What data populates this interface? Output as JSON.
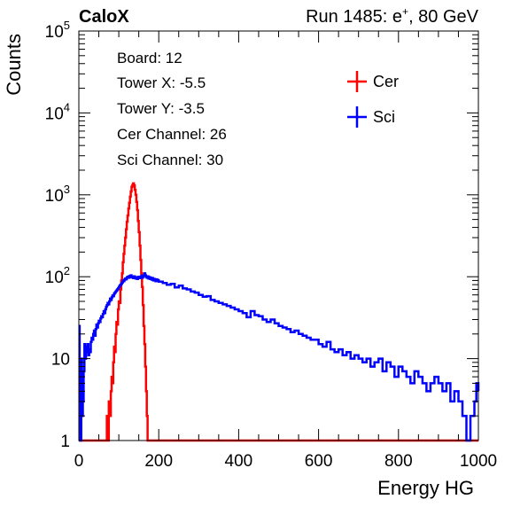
{
  "header": {
    "brand": "CaloX",
    "run_info_prefix": "Run 1485: e",
    "run_info_sup": "+",
    "run_info_suffix": ", 80 GeV"
  },
  "info_box": {
    "lines": [
      "Board: 12",
      "Tower X: -5.5",
      "Tower Y: -3.5",
      "Cer Channel: 26",
      "Sci Channel: 30"
    ]
  },
  "colors": {
    "cer": "#ff0000",
    "sci": "#0000ff",
    "axis": "#000000"
  },
  "chart_data": {
    "type": "histogram",
    "xlabel": "Energy HG",
    "ylabel": "Counts",
    "xlim": [
      0,
      1000
    ],
    "ylim": [
      1,
      100000
    ],
    "ylog": true,
    "x_ticks": [
      "0",
      "200",
      "400",
      "600",
      "800",
      "1000"
    ],
    "y_tick_labels": [
      {
        "value": 1,
        "base": "1",
        "exp": ""
      },
      {
        "value": 10,
        "base": "10",
        "exp": ""
      },
      {
        "value": 100,
        "base": "10",
        "exp": "2"
      },
      {
        "value": 1000,
        "base": "10",
        "exp": "3"
      },
      {
        "value": 10000,
        "base": "10",
        "exp": "4"
      },
      {
        "value": 100000,
        "base": "10",
        "exp": "5"
      }
    ],
    "legend_position": "top-right",
    "series": [
      {
        "name": "Cer",
        "color": "#ff0000",
        "points": [
          [
            0,
            0
          ],
          [
            50,
            0
          ],
          [
            55,
            1
          ],
          [
            57,
            0
          ],
          [
            60,
            1
          ],
          [
            62,
            0
          ],
          [
            66,
            1
          ],
          [
            70,
            2
          ],
          [
            72,
            1
          ],
          [
            75,
            3
          ],
          [
            78,
            2
          ],
          [
            80,
            4
          ],
          [
            82,
            6
          ],
          [
            84,
            5
          ],
          [
            86,
            9
          ],
          [
            88,
            14
          ],
          [
            90,
            12
          ],
          [
            92,
            20
          ],
          [
            94,
            28
          ],
          [
            96,
            26
          ],
          [
            98,
            40
          ],
          [
            100,
            50
          ],
          [
            102,
            48
          ],
          [
            104,
            70
          ],
          [
            106,
            90
          ],
          [
            108,
            110
          ],
          [
            110,
            150
          ],
          [
            112,
            190
          ],
          [
            114,
            240
          ],
          [
            116,
            300
          ],
          [
            118,
            380
          ],
          [
            120,
            470
          ],
          [
            122,
            560
          ],
          [
            124,
            680
          ],
          [
            126,
            800
          ],
          [
            128,
            950
          ],
          [
            130,
            1100
          ],
          [
            132,
            1250
          ],
          [
            134,
            1320
          ],
          [
            136,
            1380
          ],
          [
            138,
            1300
          ],
          [
            140,
            1150
          ],
          [
            142,
            1000
          ],
          [
            144,
            820
          ],
          [
            146,
            650
          ],
          [
            148,
            480
          ],
          [
            150,
            350
          ],
          [
            152,
            240
          ],
          [
            154,
            160
          ],
          [
            156,
            110
          ],
          [
            158,
            75
          ],
          [
            160,
            45
          ],
          [
            162,
            25
          ],
          [
            164,
            15
          ],
          [
            166,
            8
          ],
          [
            168,
            4
          ],
          [
            170,
            2
          ],
          [
            172,
            1
          ],
          [
            174,
            0
          ],
          [
            1000,
            0
          ]
        ]
      },
      {
        "name": "Sci",
        "color": "#0000ff",
        "points": [
          [
            0,
            25
          ],
          [
            2,
            3
          ],
          [
            4,
            1
          ],
          [
            6,
            10
          ],
          [
            8,
            2
          ],
          [
            10,
            3
          ],
          [
            12,
            7
          ],
          [
            14,
            15
          ],
          [
            16,
            10
          ],
          [
            18,
            14
          ],
          [
            20,
            12
          ],
          [
            22,
            15
          ],
          [
            24,
            11
          ],
          [
            26,
            13
          ],
          [
            28,
            12
          ],
          [
            30,
            16
          ],
          [
            32,
            18
          ],
          [
            34,
            17
          ],
          [
            36,
            20
          ],
          [
            38,
            22
          ],
          [
            40,
            19
          ],
          [
            42,
            23
          ],
          [
            44,
            26
          ],
          [
            46,
            24
          ],
          [
            48,
            27
          ],
          [
            50,
            29
          ],
          [
            52,
            28
          ],
          [
            54,
            31
          ],
          [
            56,
            33
          ],
          [
            58,
            32
          ],
          [
            60,
            35
          ],
          [
            62,
            38
          ],
          [
            64,
            36
          ],
          [
            66,
            40
          ],
          [
            68,
            43
          ],
          [
            70,
            45
          ],
          [
            72,
            48
          ],
          [
            74,
            46
          ],
          [
            76,
            50
          ],
          [
            78,
            54
          ],
          [
            80,
            52
          ],
          [
            82,
            56
          ],
          [
            84,
            59
          ],
          [
            86,
            58
          ],
          [
            88,
            62
          ],
          [
            90,
            64
          ],
          [
            92,
            66
          ],
          [
            94,
            68
          ],
          [
            96,
            70
          ],
          [
            98,
            72
          ],
          [
            100,
            75
          ],
          [
            102,
            78
          ],
          [
            104,
            80
          ],
          [
            106,
            82
          ],
          [
            108,
            85
          ],
          [
            110,
            90
          ],
          [
            112,
            88
          ],
          [
            114,
            92
          ],
          [
            116,
            95
          ],
          [
            118,
            93
          ],
          [
            120,
            98
          ],
          [
            122,
            100
          ],
          [
            124,
            97
          ],
          [
            126,
            102
          ],
          [
            128,
            99
          ],
          [
            130,
            104
          ],
          [
            132,
            98
          ],
          [
            134,
            100
          ],
          [
            136,
            96
          ],
          [
            138,
            101
          ],
          [
            140,
            97
          ],
          [
            142,
            95
          ],
          [
            144,
            99
          ],
          [
            146,
            94
          ],
          [
            148,
            98
          ],
          [
            150,
            100
          ],
          [
            152,
            96
          ],
          [
            154,
            100
          ],
          [
            156,
            103
          ],
          [
            158,
            97
          ],
          [
            160,
            100
          ],
          [
            162,
            104
          ],
          [
            164,
            110
          ],
          [
            166,
            104
          ],
          [
            168,
            100
          ],
          [
            170,
            97
          ],
          [
            172,
            101
          ],
          [
            174,
            95
          ],
          [
            176,
            99
          ],
          [
            178,
            94
          ],
          [
            180,
            97
          ],
          [
            182,
            92
          ],
          [
            184,
            96
          ],
          [
            186,
            90
          ],
          [
            188,
            94
          ],
          [
            190,
            91
          ],
          [
            192,
            88
          ],
          [
            194,
            93
          ],
          [
            196,
            89
          ],
          [
            198,
            91
          ],
          [
            200,
            87
          ],
          [
            210,
            84
          ],
          [
            220,
            80
          ],
          [
            230,
            82
          ],
          [
            240,
            74
          ],
          [
            250,
            78
          ],
          [
            260,
            72
          ],
          [
            270,
            70
          ],
          [
            280,
            66
          ],
          [
            290,
            64
          ],
          [
            300,
            60
          ],
          [
            310,
            57
          ],
          [
            320,
            58
          ],
          [
            330,
            52
          ],
          [
            340,
            50
          ],
          [
            350,
            48
          ],
          [
            360,
            46
          ],
          [
            370,
            44
          ],
          [
            380,
            42
          ],
          [
            390,
            40
          ],
          [
            400,
            38
          ],
          [
            410,
            36
          ],
          [
            420,
            32
          ],
          [
            430,
            38
          ],
          [
            440,
            34
          ],
          [
            450,
            33
          ],
          [
            460,
            30
          ],
          [
            470,
            28
          ],
          [
            480,
            30
          ],
          [
            490,
            27
          ],
          [
            500,
            25
          ],
          [
            510,
            24
          ],
          [
            520,
            23
          ],
          [
            530,
            21
          ],
          [
            540,
            22
          ],
          [
            550,
            20
          ],
          [
            560,
            19
          ],
          [
            570,
            18
          ],
          [
            580,
            17
          ],
          [
            590,
            17
          ],
          [
            600,
            15
          ],
          [
            610,
            14
          ],
          [
            620,
            16
          ],
          [
            630,
            13
          ],
          [
            640,
            12
          ],
          [
            650,
            13
          ],
          [
            660,
            11
          ],
          [
            670,
            12
          ],
          [
            680,
            10
          ],
          [
            690,
            11
          ],
          [
            700,
            10
          ],
          [
            710,
            9
          ],
          [
            720,
            10
          ],
          [
            730,
            8
          ],
          [
            740,
            9
          ],
          [
            750,
            10
          ],
          [
            760,
            7
          ],
          [
            770,
            9
          ],
          [
            780,
            8
          ],
          [
            790,
            6
          ],
          [
            800,
            8
          ],
          [
            810,
            7
          ],
          [
            820,
            6
          ],
          [
            830,
            5
          ],
          [
            840,
            7
          ],
          [
            850,
            6
          ],
          [
            860,
            5
          ],
          [
            870,
            4
          ],
          [
            880,
            5
          ],
          [
            890,
            6
          ],
          [
            900,
            5
          ],
          [
            910,
            4
          ],
          [
            920,
            5
          ],
          [
            930,
            3
          ],
          [
            940,
            4
          ],
          [
            950,
            3
          ],
          [
            960,
            2
          ],
          [
            970,
            1
          ],
          [
            980,
            2
          ],
          [
            990,
            3
          ],
          [
            995,
            5
          ],
          [
            1000,
            4
          ]
        ]
      }
    ]
  }
}
